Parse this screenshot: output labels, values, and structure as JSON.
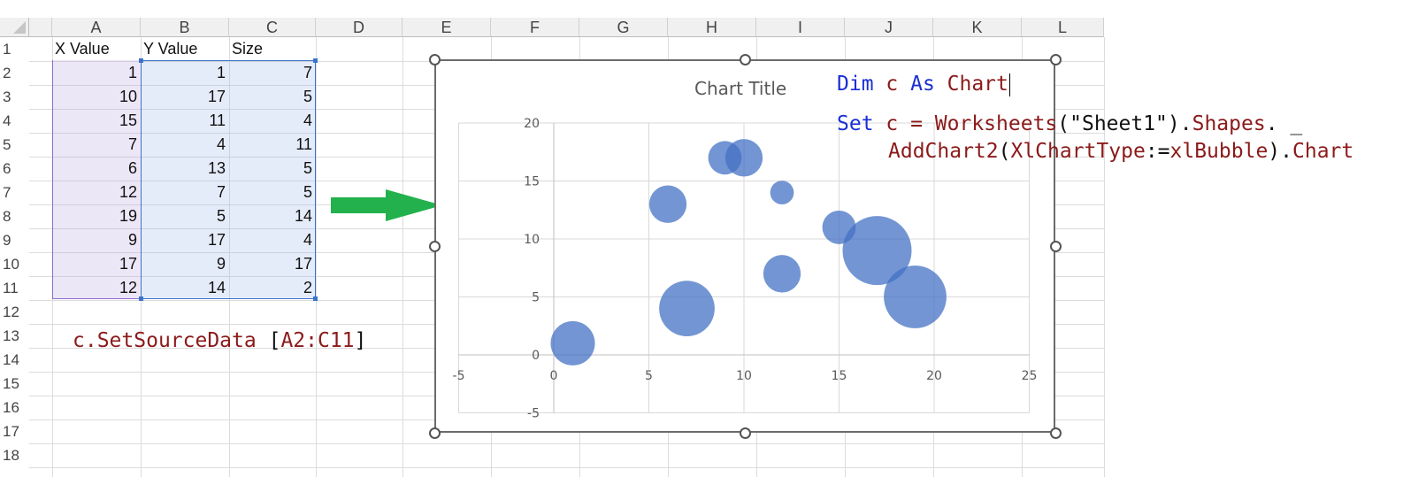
{
  "spreadsheet": {
    "columns": [
      "A",
      "B",
      "C",
      "D",
      "E",
      "F",
      "G",
      "H",
      "I",
      "J",
      "K",
      "L"
    ],
    "rows": [
      "1",
      "2",
      "3",
      "4",
      "5",
      "6",
      "7",
      "8",
      "9",
      "10",
      "11",
      "12",
      "13",
      "14",
      "15",
      "16",
      "17",
      "18"
    ],
    "headers": [
      "X Value",
      "Y Value",
      "Size"
    ],
    "data": [
      [
        1,
        1,
        7
      ],
      [
        10,
        17,
        5
      ],
      [
        15,
        11,
        4
      ],
      [
        7,
        4,
        11
      ],
      [
        6,
        13,
        5
      ],
      [
        12,
        7,
        5
      ],
      [
        19,
        5,
        14
      ],
      [
        9,
        17,
        4
      ],
      [
        17,
        9,
        17
      ],
      [
        12,
        14,
        2
      ]
    ]
  },
  "code": {
    "set_source_object": "c",
    "set_source_method": ".SetSourceData",
    "set_source_arg_open": " [",
    "set_source_range": "A2:C11",
    "set_source_arg_close": "]",
    "dim_kw": "Dim",
    "dim_var": " c ",
    "dim_as": "As",
    "dim_type": " Chart",
    "set_kw": "Set",
    "set_var": " c = ",
    "set_ws": "Worksheets",
    "set_ws_arg": "(\"Sheet1\").",
    "set_shapes": "Shapes",
    "set_cont": ". _",
    "add_chart": "AddChart2",
    "add_open": "(",
    "add_param": "XlChartType",
    "add_assign": ":=",
    "add_value": "xlBubble",
    "add_close": ").",
    "add_chart_prop": "Chart"
  },
  "colors": {
    "bubble": "#4472c4",
    "arrow": "#22b14c",
    "keyword": "#1a2fd4",
    "object": "#8b1a1a"
  },
  "chart_data": {
    "type": "scatter",
    "subtype": "bubble",
    "title": "Chart Title",
    "x": [
      1,
      10,
      15,
      7,
      6,
      12,
      19,
      9,
      17,
      12
    ],
    "y": [
      1,
      17,
      11,
      4,
      13,
      7,
      5,
      17,
      9,
      14
    ],
    "size": [
      7,
      5,
      4,
      11,
      5,
      5,
      14,
      4,
      17,
      2
    ],
    "xlim": [
      -5,
      25
    ],
    "ylim": [
      -5,
      20
    ],
    "xticks": [
      -5,
      0,
      5,
      10,
      15,
      20,
      25
    ],
    "yticks": [
      -5,
      0,
      5,
      10,
      15,
      20
    ],
    "grid": true,
    "legend": "none"
  }
}
